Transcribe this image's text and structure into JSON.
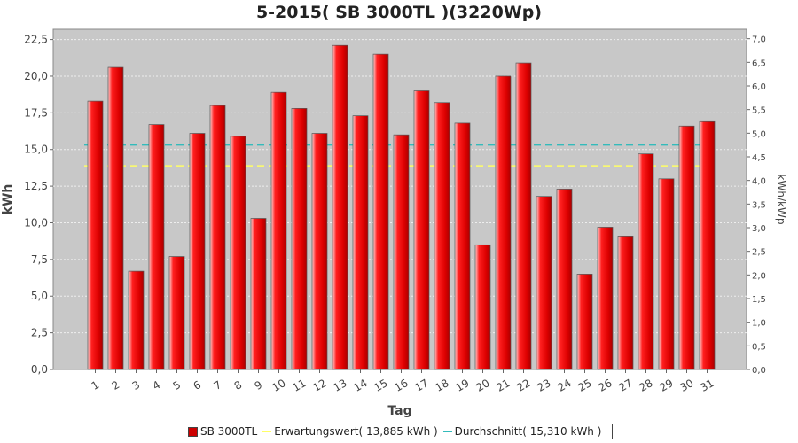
{
  "chart_data": {
    "type": "bar",
    "title": "5-2015( SB 3000TL )(3220Wp)",
    "xlabel": "Tag",
    "ylabel": "kWh",
    "ylabel_right": "kWh/kWp",
    "ylim": [
      0,
      23.2
    ],
    "ylim_right": [
      0,
      7.2
    ],
    "y_ticks": [
      "0,0",
      "2,5",
      "5,0",
      "7,5",
      "10,0",
      "12,5",
      "15,0",
      "17,5",
      "20,0",
      "22,5"
    ],
    "y_ticks_right": [
      "0,0",
      "0,5",
      "1,0",
      "1,5",
      "2,0",
      "2,5",
      "3,0",
      "3,5",
      "4,0",
      "4,5",
      "5,0",
      "5,5",
      "6,0",
      "6,5",
      "7,0"
    ],
    "grid": true,
    "legend_position": "bottom",
    "categories": [
      "1",
      "2",
      "3",
      "4",
      "5",
      "6",
      "7",
      "8",
      "9",
      "10",
      "11",
      "12",
      "13",
      "14",
      "15",
      "16",
      "17",
      "18",
      "19",
      "20",
      "21",
      "22",
      "23",
      "24",
      "25",
      "26",
      "27",
      "28",
      "29",
      "30",
      "31"
    ],
    "series": [
      {
        "name": "SB 3000TL",
        "color": "#dd0000",
        "values": [
          18.3,
          20.6,
          6.7,
          16.7,
          7.7,
          16.1,
          18.0,
          15.9,
          10.3,
          18.9,
          17.8,
          16.1,
          22.1,
          17.3,
          21.5,
          16.0,
          19.0,
          18.2,
          16.8,
          8.5,
          20.0,
          20.9,
          11.8,
          12.3,
          6.5,
          9.7,
          9.1,
          14.7,
          13.0,
          16.6,
          16.9
        ]
      }
    ],
    "reference_lines": [
      {
        "name": "Erwartungswert( 13,885 kWh )",
        "value": 13.885,
        "color": "#ffff66"
      },
      {
        "name": "Durchschnitt( 15,310 kWh )",
        "value": 15.31,
        "color": "#33bbbb"
      }
    ]
  }
}
